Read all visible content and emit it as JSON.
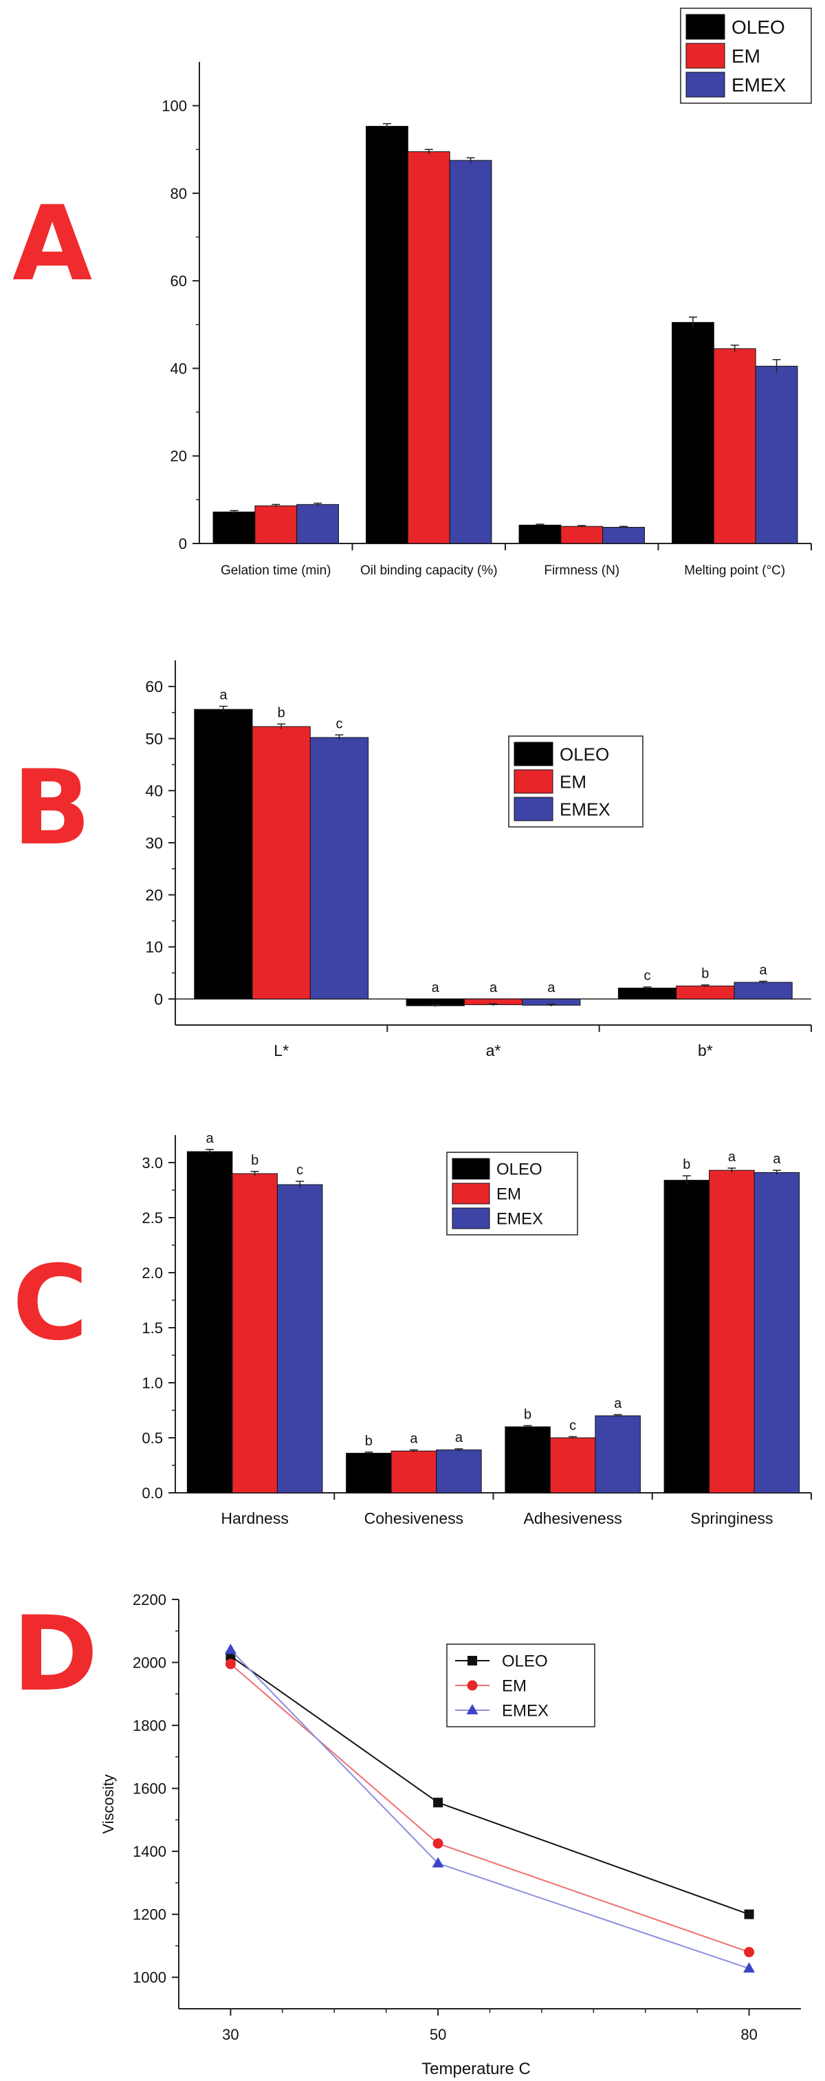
{
  "panel_labels": [
    "A",
    "B",
    "C",
    "D"
  ],
  "colors": {
    "OLEO": "#000000",
    "EM": "#e8262a",
    "EMEX": "#3d44a6"
  },
  "chart_data": [
    {
      "type": "bar",
      "panel": "A",
      "title": "",
      "xlabel": "",
      "ylabel": "",
      "categories": [
        "Gelation time (min)",
        "Oil binding capacity (%)",
        "Firmness (N)",
        "Melting point (°C)"
      ],
      "series": [
        {
          "name": "OLEO",
          "values": [
            7.2,
            95.3,
            4.2,
            50.5
          ],
          "errors": [
            0.3,
            0.6,
            0.2,
            1.2
          ]
        },
        {
          "name": "EM",
          "values": [
            8.6,
            89.5,
            3.9,
            44.5
          ],
          "errors": [
            0.3,
            0.5,
            0.2,
            0.8
          ]
        },
        {
          "name": "EMEX",
          "values": [
            8.9,
            87.5,
            3.7,
            40.5
          ],
          "errors": [
            0.3,
            0.6,
            0.2,
            1.5
          ]
        }
      ],
      "ylim": [
        0,
        110
      ],
      "yticks": [
        0,
        20,
        40,
        60,
        80,
        100
      ],
      "legend": [
        "OLEO",
        "EM",
        "EMEX"
      ],
      "legend_position": "top-right"
    },
    {
      "type": "bar",
      "panel": "B",
      "title": "",
      "xlabel": "",
      "ylabel": "",
      "categories": [
        "L*",
        "a*",
        "b*"
      ],
      "series": [
        {
          "name": "OLEO",
          "values": [
            55.6,
            -1.3,
            2.1
          ],
          "errors": [
            0.6,
            0.2,
            0.2
          ],
          "letters": [
            "a",
            "a",
            "c"
          ]
        },
        {
          "name": "EM",
          "values": [
            52.3,
            -1.1,
            2.5
          ],
          "errors": [
            0.5,
            0.2,
            0.2
          ],
          "letters": [
            "b",
            "a",
            "b"
          ]
        },
        {
          "name": "EMEX",
          "values": [
            50.2,
            -1.2,
            3.2
          ],
          "errors": [
            0.5,
            0.2,
            0.2
          ],
          "letters": [
            "c",
            "a",
            "a"
          ]
        }
      ],
      "ylim": [
        -5,
        65
      ],
      "yticks": [
        0,
        10,
        20,
        30,
        40,
        50,
        60
      ],
      "legend": [
        "OLEO",
        "EM",
        "EMEX"
      ],
      "legend_position": "center"
    },
    {
      "type": "bar",
      "panel": "C",
      "title": "",
      "xlabel": "",
      "ylabel": "",
      "categories": [
        "Hardness",
        "Cohesiveness",
        "Adhesiveness",
        "Springiness"
      ],
      "series": [
        {
          "name": "OLEO",
          "values": [
            3.1,
            0.36,
            0.6,
            2.84
          ],
          "errors": [
            0.02,
            0.01,
            0.01,
            0.04
          ],
          "letters": [
            "a",
            "b",
            "b",
            "b"
          ]
        },
        {
          "name": "EM",
          "values": [
            2.9,
            0.38,
            0.5,
            2.93
          ],
          "errors": [
            0.02,
            0.01,
            0.01,
            0.02
          ],
          "letters": [
            "b",
            "a",
            "c",
            "a"
          ]
        },
        {
          "name": "EMEX",
          "values": [
            2.8,
            0.39,
            0.7,
            2.91
          ],
          "errors": [
            0.03,
            0.01,
            0.01,
            0.02
          ],
          "letters": [
            "c",
            "a",
            "a",
            "a"
          ]
        }
      ],
      "ylim": [
        0,
        3.25
      ],
      "yticks": [
        0.0,
        0.5,
        1.0,
        1.5,
        2.0,
        2.5,
        3.0
      ],
      "ytick_labels": [
        "0.0",
        "0.5",
        "1.0",
        "1.5",
        "2.0",
        "2.5",
        "3.0"
      ],
      "legend": [
        "OLEO",
        "EM",
        "EMEX"
      ],
      "legend_position": "top-center"
    },
    {
      "type": "line",
      "panel": "D",
      "title": "",
      "xlabel": "Temperature C",
      "ylabel": "Viscosity",
      "x": [
        30,
        50,
        80
      ],
      "xticks": [
        30,
        50,
        80
      ],
      "xlim": [
        25,
        85
      ],
      "series": [
        {
          "name": "OLEO",
          "values": [
            2020,
            1555,
            1200
          ],
          "marker": "square"
        },
        {
          "name": "EM",
          "values": [
            1995,
            1425,
            1080
          ],
          "marker": "circle"
        },
        {
          "name": "EMEX",
          "values": [
            2040,
            1362,
            1028
          ],
          "marker": "triangle"
        }
      ],
      "ylim": [
        900,
        2200
      ],
      "yticks": [
        1000,
        1200,
        1400,
        1600,
        1800,
        2000,
        2200
      ],
      "legend": [
        "OLEO",
        "EM",
        "EMEX"
      ],
      "legend_position": "top-center"
    }
  ]
}
